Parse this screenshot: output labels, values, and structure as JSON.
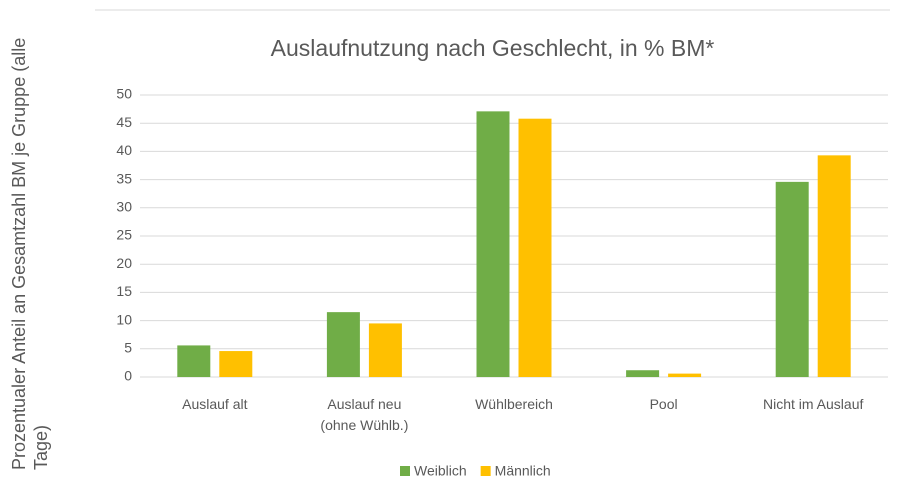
{
  "chart_data": {
    "type": "bar",
    "title": "Auslaufnutzung nach Geschlecht, in % BM*",
    "y_label": "Prozentualer Anteil an Gesamtzahl BM je Gruppe (alle Tage)",
    "categories": [
      "Auslauf alt",
      "Auslauf neu (ohne Wühlb.)",
      "Wühlbereich",
      "Pool",
      "Nicht im Auslauf"
    ],
    "series": [
      {
        "name": "Weiblich",
        "color": "#70ad47",
        "values": [
          5.6,
          11.5,
          47.1,
          1.2,
          34.6
        ]
      },
      {
        "name": "Männlich",
        "color": "#ffc000",
        "values": [
          4.6,
          9.5,
          45.8,
          0.6,
          39.3
        ]
      }
    ],
    "ylim": [
      0,
      50
    ],
    "yticks": [
      0,
      5,
      10,
      15,
      20,
      25,
      30,
      35,
      40,
      45,
      50
    ],
    "grid": true,
    "legend": "bottom"
  }
}
